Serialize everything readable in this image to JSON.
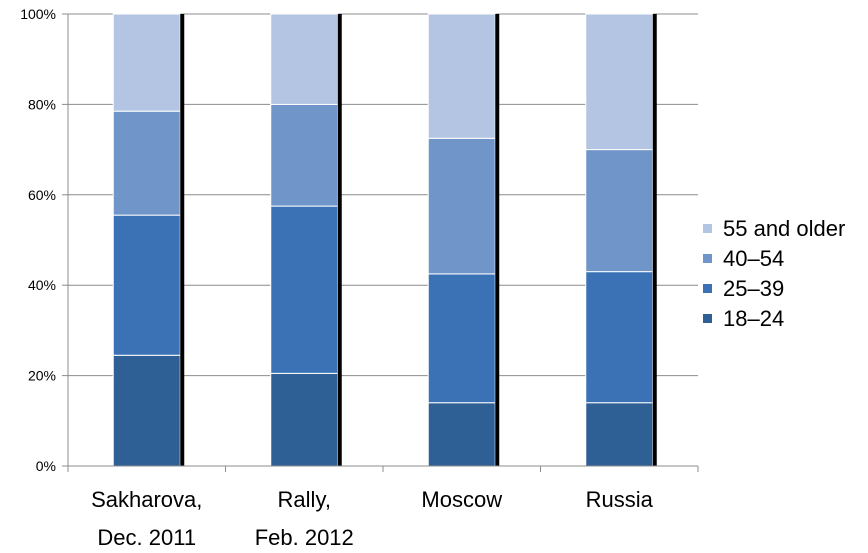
{
  "chart_data": {
    "type": "bar",
    "stacked": true,
    "categories": [
      [
        "Sakharova,",
        "Dec. 2011"
      ],
      [
        "Rally,",
        "Feb. 2012"
      ],
      [
        "Moscow"
      ],
      [
        "Russia"
      ]
    ],
    "series": [
      {
        "name": "18–24",
        "color": "#2e5f95",
        "values": [
          24.5,
          20.5,
          14,
          14
        ]
      },
      {
        "name": "25–39",
        "color": "#3a72b5",
        "values": [
          31,
          37,
          28.5,
          29
        ]
      },
      {
        "name": "40–54",
        "color": "#7096c9",
        "values": [
          23,
          22.5,
          30,
          27
        ]
      },
      {
        "name": "55 and older",
        "color": "#b3c5e2",
        "values": [
          21.5,
          20,
          27.5,
          30
        ]
      }
    ],
    "ylim": [
      0,
      100
    ],
    "yticks": [
      "0%",
      "20%",
      "40%",
      "60%",
      "80%",
      "100%"
    ],
    "grid": true,
    "legend": "right"
  }
}
